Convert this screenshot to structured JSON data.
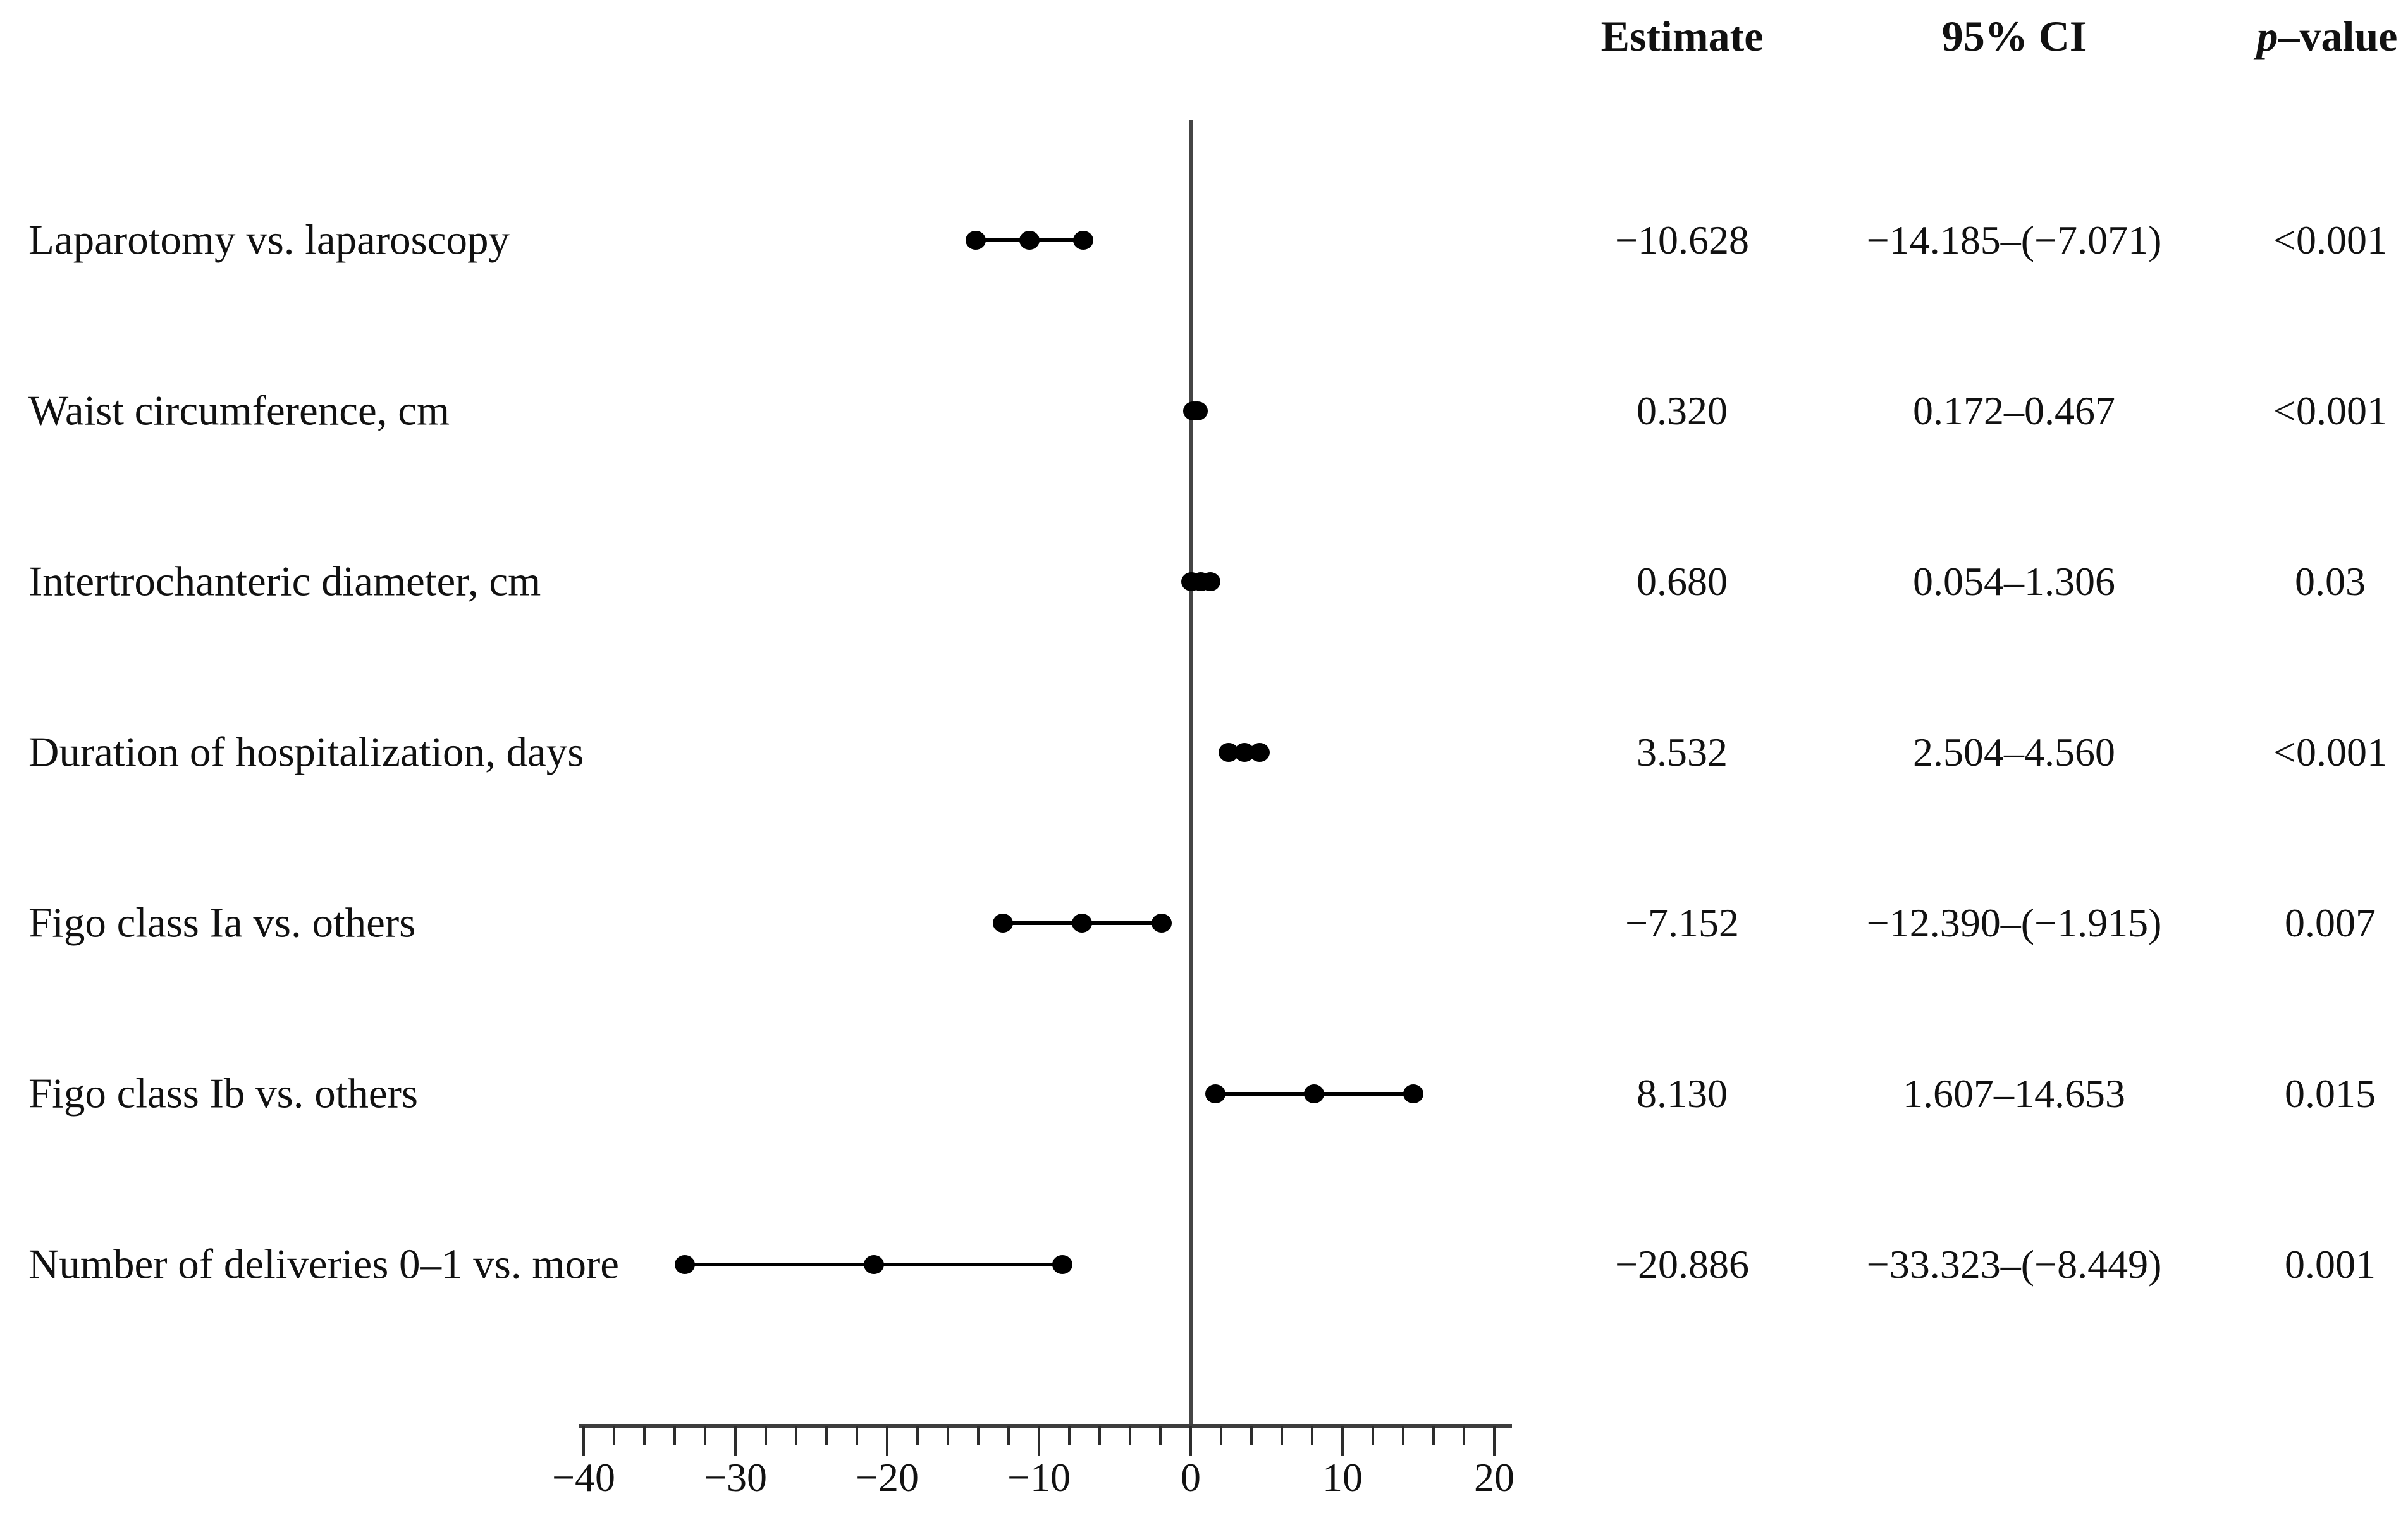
{
  "header": {
    "estimate": "Estimate",
    "ci": "95% CI",
    "p_italic": "p",
    "p_rest": "–value"
  },
  "chart_data": {
    "type": "forest",
    "title": "",
    "xlabel": "",
    "xlim": [
      -40,
      20
    ],
    "x_major_ticks": [
      -40,
      -30,
      -20,
      -10,
      0,
      10,
      20
    ],
    "x_tick_labels": [
      "−40",
      "−30",
      "−20",
      "−10",
      "0",
      "10",
      "20"
    ],
    "minor_tick_step": 2,
    "reference_line_x": 0,
    "grid": false,
    "columns": [
      "Estimate",
      "95% CI",
      "p-value"
    ],
    "rows": [
      {
        "label": "Laparotomy vs. laparoscopy",
        "estimate": -10.628,
        "ci_low": -14.185,
        "ci_high": -7.071,
        "estimate_text": "−10.628",
        "ci_text": "−14.185–(−7.071)",
        "p_text": "<0.001"
      },
      {
        "label": "Waist circumference, cm",
        "estimate": 0.32,
        "ci_low": 0.172,
        "ci_high": 0.467,
        "estimate_text": "0.320",
        "ci_text": "0.172–0.467",
        "p_text": "<0.001"
      },
      {
        "label": "Intertrochanteric diameter, cm",
        "estimate": 0.68,
        "ci_low": 0.054,
        "ci_high": 1.306,
        "estimate_text": "0.680",
        "ci_text": "0.054–1.306",
        "p_text": "0.03"
      },
      {
        "label": "Duration of hospitalization, days",
        "estimate": 3.532,
        "ci_low": 2.504,
        "ci_high": 4.56,
        "estimate_text": "3.532",
        "ci_text": "2.504–4.560",
        "p_text": "<0.001"
      },
      {
        "label": "Figo class Ia vs. others",
        "estimate": -7.152,
        "ci_low": -12.39,
        "ci_high": -1.915,
        "estimate_text": "−7.152",
        "ci_text": "−12.390–(−1.915)",
        "p_text": "0.007"
      },
      {
        "label": "Figo class Ib vs. others",
        "estimate": 8.13,
        "ci_low": 1.607,
        "ci_high": 14.653,
        "estimate_text": "8.130",
        "ci_text": "1.607–14.653",
        "p_text": "0.015"
      },
      {
        "label": "Number of deliveries 0–1 vs. more",
        "estimate": -20.886,
        "ci_low": -33.323,
        "ci_high": -8.449,
        "estimate_text": "−20.886",
        "ci_text": "−33.323–(−8.449)",
        "p_text": "0.001"
      }
    ]
  }
}
